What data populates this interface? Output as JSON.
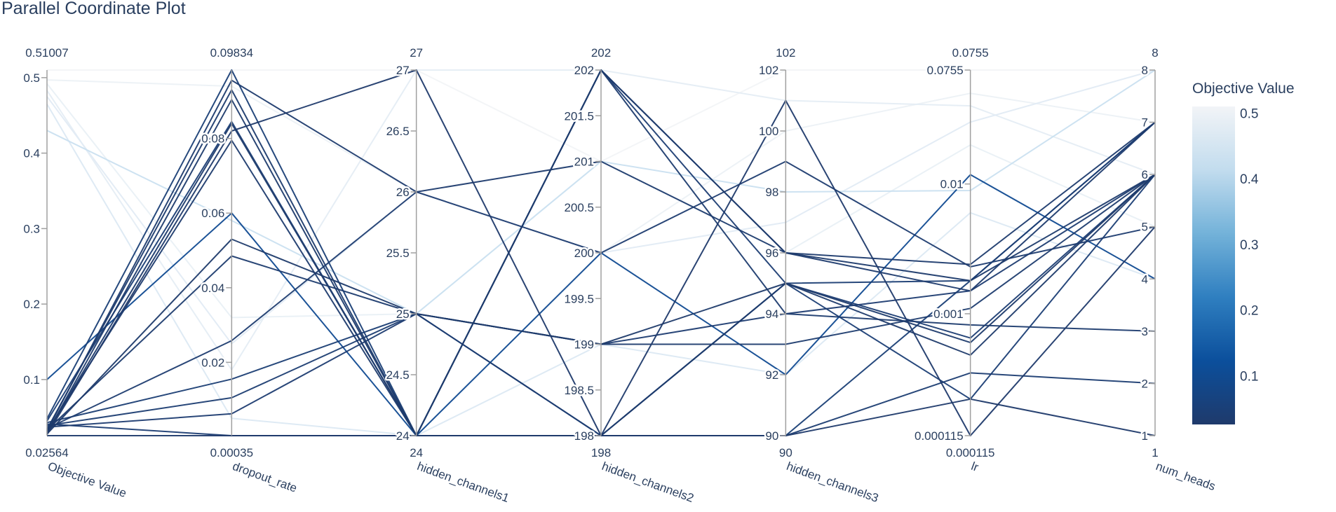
{
  "chart_data": {
    "type": "parallel_coordinates",
    "title": "Parallel Coordinate Plot",
    "dimensions": [
      {
        "name": "Objective Value",
        "range": [
          0.02564,
          0.51007
        ],
        "range_labels": [
          "0.02564",
          "0.51007"
        ],
        "ticks": [
          0.1,
          0.2,
          0.3,
          0.4,
          0.5
        ],
        "tick_labels": [
          "0.1",
          "0.2",
          "0.3",
          "0.4",
          "0.5"
        ]
      },
      {
        "name": "dropout_rate",
        "range": [
          0.00035,
          0.09834
        ],
        "range_labels": [
          "0.00035",
          "0.09834"
        ],
        "ticks": [
          0.02,
          0.04,
          0.06,
          0.08
        ],
        "tick_labels": [
          "0.02",
          "0.04",
          "0.06",
          "0.08"
        ]
      },
      {
        "name": "hidden_channels1",
        "range": [
          24,
          27
        ],
        "range_labels": [
          "24",
          "27"
        ],
        "ticks": [
          24,
          24.5,
          25,
          25.5,
          26,
          26.5,
          27
        ],
        "tick_labels": [
          "24",
          "24.5",
          "25",
          "25.5",
          "26",
          "26.5",
          "27"
        ]
      },
      {
        "name": "hidden_channels2",
        "range": [
          198,
          202
        ],
        "range_labels": [
          "198",
          "202"
        ],
        "ticks": [
          198,
          198.5,
          199,
          199.5,
          200,
          200.5,
          201,
          201.5,
          202
        ],
        "tick_labels": [
          "198",
          "198.5",
          "199",
          "199.5",
          "200",
          "200.5",
          "201",
          "201.5",
          "202"
        ]
      },
      {
        "name": "hidden_channels3",
        "range": [
          90,
          102
        ],
        "range_labels": [
          "90",
          "102"
        ],
        "ticks": [
          90,
          92,
          94,
          96,
          98,
          100,
          102
        ],
        "tick_labels": [
          "90",
          "92",
          "94",
          "96",
          "98",
          "100",
          "102"
        ]
      },
      {
        "name": "lr",
        "range": [
          0.000115,
          0.0755
        ],
        "range_labels": [
          "0.000115",
          "0.0755"
        ],
        "log": true,
        "ticks": [
          0.000115,
          0.001,
          0.01,
          0.0755
        ],
        "tick_labels": [
          "0.000115",
          "0.001",
          "0.01",
          "0.0755"
        ]
      },
      {
        "name": "num_heads",
        "range": [
          1,
          8
        ],
        "range_labels": [
          "1",
          "8"
        ],
        "ticks": [
          1,
          2,
          3,
          4,
          5,
          6,
          7,
          8
        ],
        "tick_labels": [
          "1",
          "2",
          "3",
          "4",
          "5",
          "6",
          "7",
          "8"
        ]
      }
    ],
    "colorbar": {
      "title": "Objective Value",
      "range": [
        0.02564,
        0.51007
      ],
      "ticks": [
        0.1,
        0.2,
        0.3,
        0.4,
        0.5
      ],
      "tick_labels": [
        "0.1",
        "0.2",
        "0.3",
        "0.4",
        "0.5"
      ],
      "colorscale": [
        "#1f3a6b",
        "#0b4f9c",
        "#2f7fc0",
        "#73b2d9",
        "#c2dcee",
        "#f2f4f7"
      ]
    },
    "trials": [
      [
        0.51007,
        0.09834,
        27,
        201,
        102,
        0.0755,
        8
      ],
      [
        0.497,
        0.094,
        26,
        200,
        100,
        0.05,
        7
      ],
      [
        0.492,
        0.032,
        25,
        201,
        96,
        0.02,
        5
      ],
      [
        0.483,
        0.018,
        27,
        202,
        101,
        0.04,
        6
      ],
      [
        0.475,
        0.025,
        26,
        200,
        97,
        0.03,
        8
      ],
      [
        0.465,
        0.005,
        24,
        199,
        92,
        0.006,
        4
      ],
      [
        0.43,
        0.058,
        25,
        201,
        98,
        0.0089,
        8
      ],
      [
        0.1,
        0.06,
        24,
        200,
        92,
        0.0118,
        4
      ],
      [
        0.048,
        0.09834,
        24,
        198,
        90,
        0.0018,
        7
      ],
      [
        0.045,
        0.0845,
        24,
        198,
        95,
        0.00022,
        6
      ],
      [
        0.043,
        0.0155,
        25,
        198,
        95,
        0.0018,
        7
      ],
      [
        0.041,
        0.00035,
        24,
        202,
        95,
        0.00065,
        6
      ],
      [
        0.039,
        0.0105,
        25,
        198,
        90,
        0.00035,
        2
      ],
      [
        0.037,
        0.0062,
        25,
        199,
        94,
        0.0015,
        6
      ],
      [
        0.035,
        0.0258,
        26,
        200,
        99,
        0.0023,
        5
      ],
      [
        0.034,
        0.093,
        24,
        202,
        94,
        0.00082,
        3
      ],
      [
        0.033,
        0.0485,
        25,
        199,
        93,
        0.0011,
        6
      ],
      [
        0.032,
        0.0956,
        26,
        201,
        96,
        0.0024,
        7
      ],
      [
        0.031,
        0.0795,
        24,
        202,
        96,
        0.0015,
        7
      ],
      [
        0.03,
        0.084,
        24,
        198,
        95,
        0.0006,
        6
      ],
      [
        0.029,
        0.0904,
        24,
        202,
        96,
        0.0018,
        6
      ],
      [
        0.028,
        0.053,
        25,
        199,
        95,
        0.00048,
        6
      ],
      [
        0.027,
        0.082,
        27,
        198,
        101,
        0.000115,
        5
      ],
      [
        0.02564,
        0.00035,
        24,
        198,
        90,
        0.00022,
        1
      ]
    ]
  }
}
